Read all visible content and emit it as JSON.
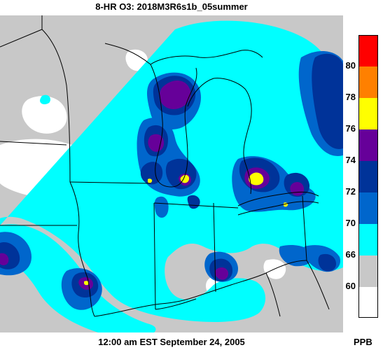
{
  "header": {
    "title": "8-HR O3: 2018M3R6s1b_05summer"
  },
  "footer": {
    "timestamp": "12:00 am EST September 24, 2005"
  },
  "legend": {
    "unit": "PPB",
    "colors": [
      "#ff0000",
      "#ff8000",
      "#ffff00",
      "#660099",
      "#003399",
      "#0066cc",
      "#00ffff",
      "#c8c8c8",
      "#ffffff"
    ],
    "labels": [
      "80",
      "78",
      "76",
      "74",
      "72",
      "70",
      "66",
      "60"
    ]
  },
  "map": {
    "background_color": "#c8c8c8",
    "boundary_color": "#000000"
  }
}
